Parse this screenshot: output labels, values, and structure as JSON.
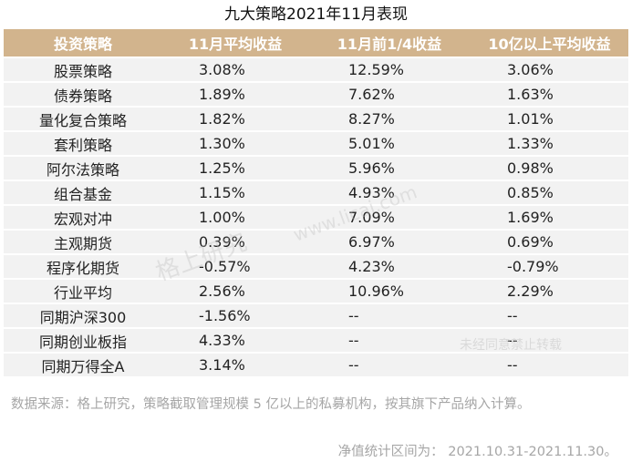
{
  "title": "九大策略2021年11月表现",
  "columns": [
    "投资策略",
    "11月平均收益",
    "11月前1/4收益",
    "10亿以上平均收益"
  ],
  "rows": [
    [
      "股票策略",
      "3.08%",
      "12.59%",
      "3.06%"
    ],
    [
      "债券策略",
      "1.89%",
      "7.62%",
      "1.63%"
    ],
    [
      "量化复合策略",
      "1.82%",
      "8.27%",
      "1.01%"
    ],
    [
      "套利策略",
      "1.30%",
      "5.01%",
      "1.33%"
    ],
    [
      "阿尔法策略",
      "1.25%",
      "5.96%",
      "0.98%"
    ],
    [
      "组合基金",
      "1.15%",
      "4.93%",
      "0.85%"
    ],
    [
      "宏观对冲",
      "1.00%",
      "7.09%",
      "1.69%"
    ],
    [
      "主观期货",
      "0.39%",
      "6.97%",
      "0.69%"
    ],
    [
      "程序化期货",
      "-0.57%",
      "4.23%",
      "-0.79%"
    ],
    [
      "行业平均",
      "2.56%",
      "10.96%",
      "2.29%"
    ],
    [
      "同期沪深300",
      "-1.56%",
      "--",
      "--"
    ],
    [
      "同期创业板指",
      "4.33%",
      "--",
      "--"
    ],
    [
      "同期万得全A",
      "3.14%",
      "--",
      "--"
    ]
  ],
  "footnote_source": "数据来源：格上研究，策略截取管理规模 5 亿以上的私募机构，按其旗下产品纳入计算。",
  "footnote_period": "净值统计区间为： 2021.10.31-2021.11.30。",
  "watermarks": [
    "格上研究",
    "www.licai.com",
    "未经同意禁止转载"
  ]
}
